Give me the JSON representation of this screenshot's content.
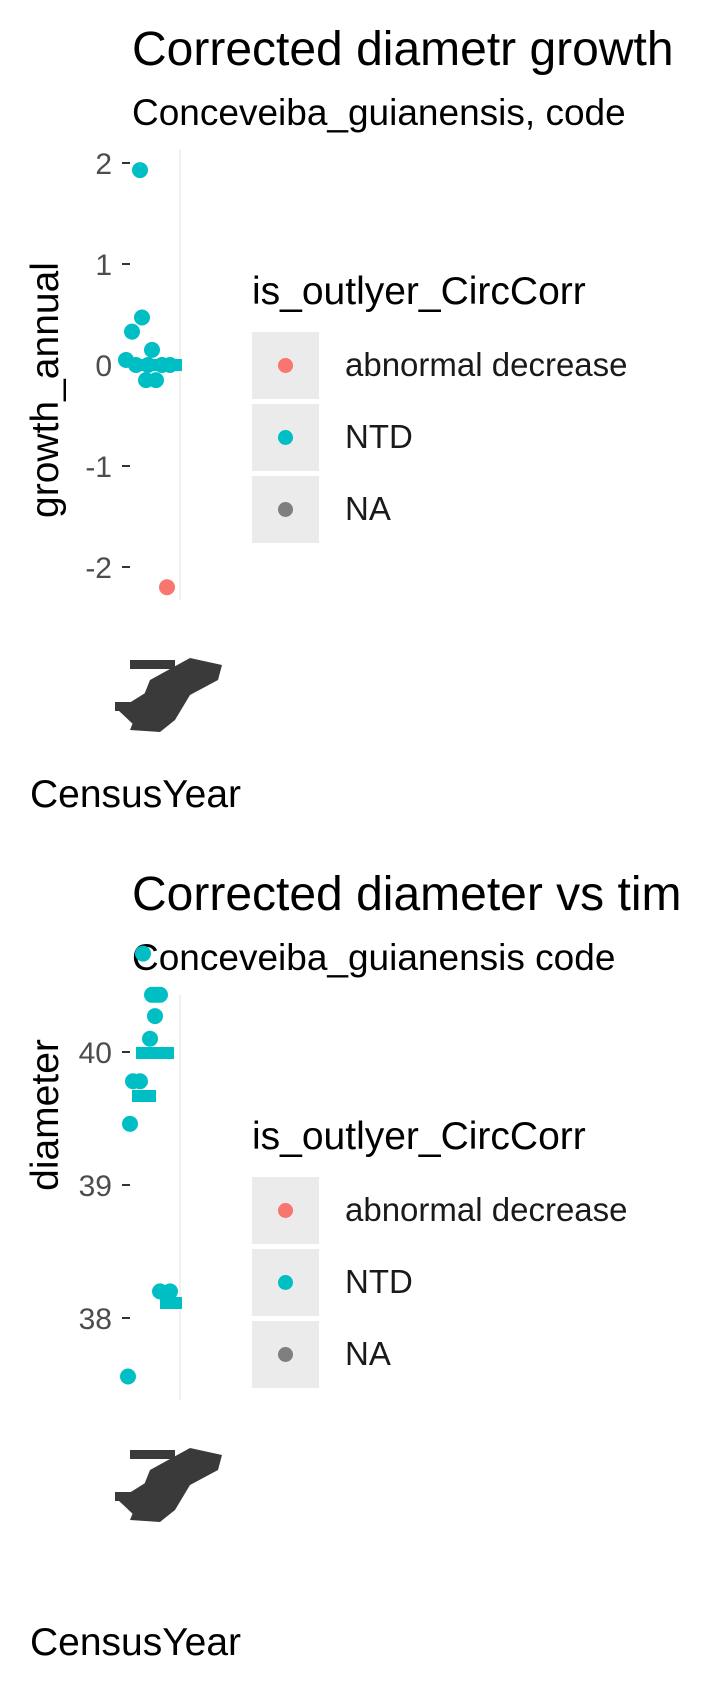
{
  "colors": {
    "abnormal_decrease": "#F8766D",
    "NTD": "#00BFC4",
    "NA": "#7F7F7F",
    "overplot_mark": "#3a3a3a"
  },
  "legend": {
    "title": "is_outlyer_CircCorr",
    "entries": [
      "abnormal decrease",
      "NTD",
      "NA"
    ]
  },
  "chart_data": [
    {
      "type": "scatter",
      "title": "Corrected diametr growth",
      "subtitle": "Conceveiba_guianensis, code",
      "xlabel": "CensusYear",
      "ylabel": "growth_annual",
      "y_ticks": [
        "2",
        "1",
        "0",
        "-1",
        "-2"
      ],
      "y_tick_values": [
        2,
        1,
        0,
        -1,
        -2
      ],
      "ylim": [
        -3.1,
        2.1
      ],
      "grid": true,
      "legend_position": "right",
      "series": [
        {
          "name": "NTD",
          "points": [
            {
              "y": 1.93
            },
            {
              "y": 0.47
            },
            {
              "y": 0.33
            },
            {
              "y": 0.15
            },
            {
              "y": 0.05
            },
            {
              "y": 0.0
            },
            {
              "y": 0.0
            },
            {
              "y": 0.0
            },
            {
              "y": 0.0
            },
            {
              "y": -0.15
            },
            {
              "y": -0.15
            }
          ]
        },
        {
          "name": "abnormal decrease",
          "points": [
            {
              "y": -2.2
            }
          ]
        }
      ]
    },
    {
      "type": "scatter",
      "title": "Corrected diameter vs tim",
      "subtitle": "Conceveiba_guianensis code",
      "xlabel": "CensusYear",
      "ylabel": "diameter",
      "y_ticks": [
        "40",
        "39",
        "38"
      ],
      "y_tick_values": [
        40,
        39,
        38
      ],
      "ylim": [
        37.0,
        40.9
      ],
      "grid": true,
      "legend_position": "right",
      "series": [
        {
          "name": "NTD",
          "points": [
            {
              "y": 40.74
            },
            {
              "y": 40.43
            },
            {
              "y": 40.43
            },
            {
              "y": 40.43
            },
            {
              "y": 40.27
            },
            {
              "y": 40.1
            },
            {
              "y": 39.78
            },
            {
              "y": 39.78
            },
            {
              "y": 39.46
            },
            {
              "y": 38.2
            },
            {
              "y": 38.2
            },
            {
              "y": 37.56
            }
          ]
        }
      ]
    }
  ]
}
